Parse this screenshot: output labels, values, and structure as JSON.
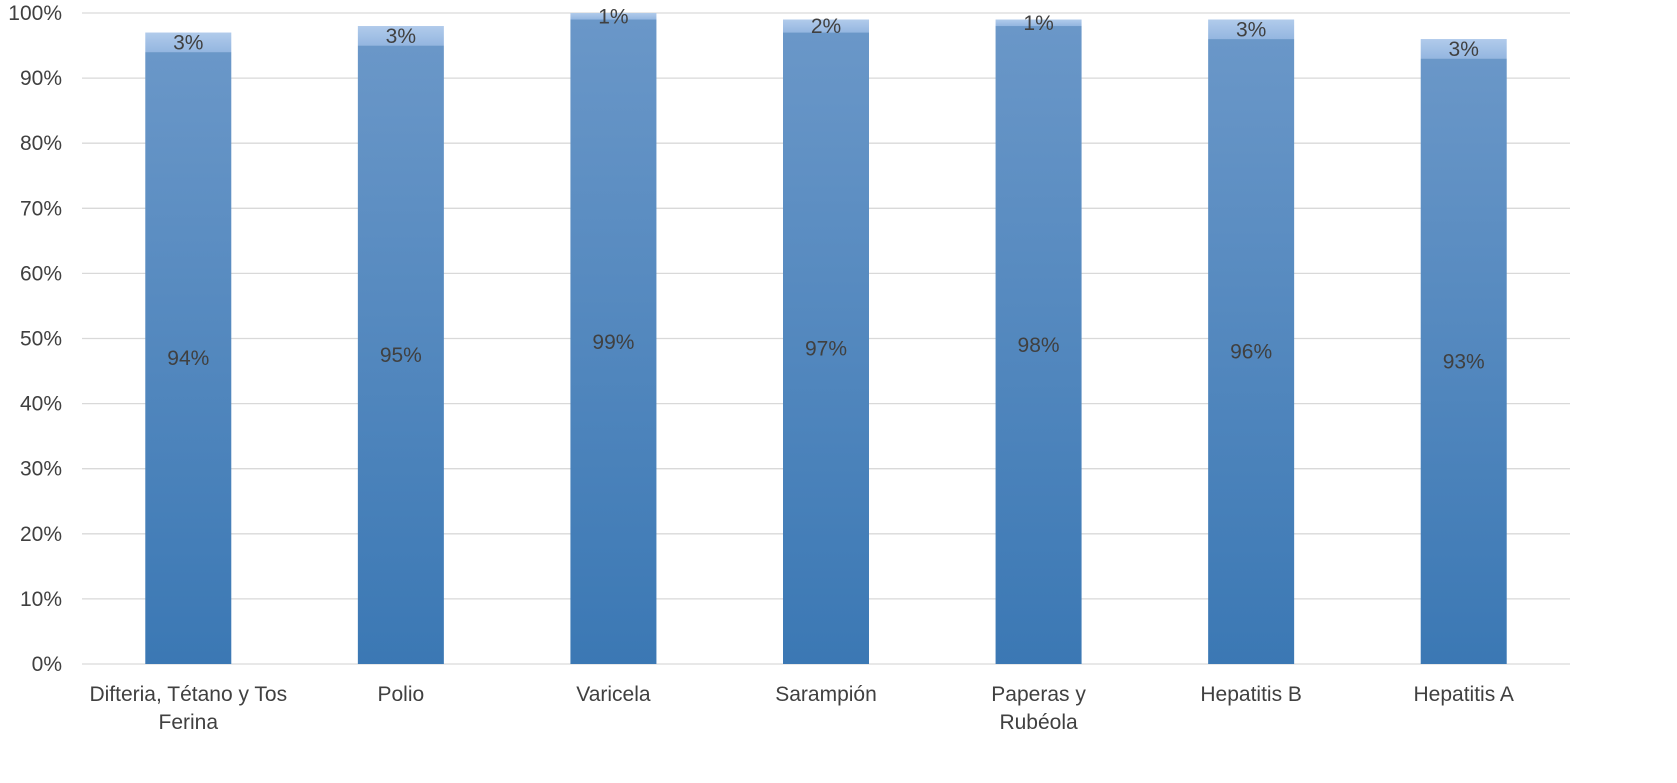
{
  "chart_data": {
    "type": "bar",
    "stacked": true,
    "categories": [
      [
        "Difteria, Tétano y Tos",
        "Ferina"
      ],
      [
        "Polio"
      ],
      [
        "Varicela"
      ],
      [
        "Sarampión"
      ],
      [
        "Paperas y",
        "Rubéola"
      ],
      [
        "Hepatitis B"
      ],
      [
        "Hepatitis A"
      ]
    ],
    "series": [
      {
        "values": [
          94,
          95,
          99,
          97,
          98,
          96,
          93
        ],
        "labels": [
          "94%",
          "95%",
          "99%",
          "97%",
          "98%",
          "96%",
          "93%"
        ],
        "color_top": "#6a97c8",
        "color_bottom": "#3b78b4"
      },
      {
        "values": [
          3,
          3,
          1,
          2,
          1,
          3,
          3
        ],
        "labels": [
          "3%",
          "3%",
          "1%",
          "2%",
          "1%",
          "3%",
          "3%"
        ],
        "color_top": "#b1cbeb",
        "color_bottom": "#94b6e0"
      }
    ],
    "yticks": [
      "0%",
      "10%",
      "20%",
      "30%",
      "40%",
      "50%",
      "60%",
      "70%",
      "80%",
      "90%",
      "100%"
    ],
    "ylim": [
      0,
      100
    ],
    "grid": true,
    "title": "",
    "xlabel": "",
    "ylabel": ""
  }
}
